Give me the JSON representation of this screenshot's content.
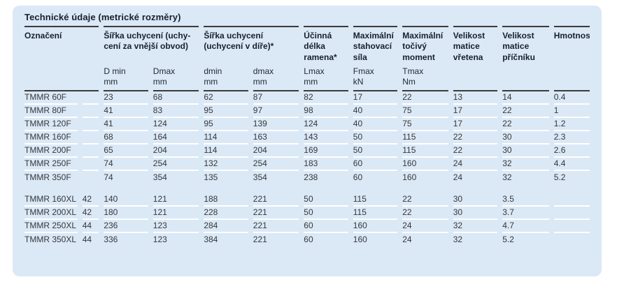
{
  "title": "Technické údaje (metrické rozměry)",
  "colors": {
    "panel_bg": "#dbe8f6",
    "heading_text": "#16212e",
    "subheader_text": "#222b34",
    "data_text": "#34383c",
    "rule_dark": "#3c3c3c",
    "rule_light": "#ffffff",
    "page_bg": "#ffffff"
  },
  "table": {
    "group_headers": [
      {
        "label": "Označení"
      },
      {
        "label": "Šířka uchycení (uchy-\ncení za vnější obvod)"
      },
      {
        "label": "Šířka uchycení\n(uchycení v díře)*"
      },
      {
        "label": "Účinná\ndélka\nramena*"
      },
      {
        "label": "Maximální\nstahovací\nsíla"
      },
      {
        "label": "Maximální\ntočivý\nmoment"
      },
      {
        "label": "Velikost\nmatice\nvřetena"
      },
      {
        "label": "Velikost\nmatice\npříčníku"
      },
      {
        "label": "Hmotnost"
      }
    ],
    "sub_headers": [
      "D min\nmm",
      "Dmax\nmm",
      "dmin\nmm",
      "dmax\nmm",
      "Lmax\nmm",
      "Fmax\nkN",
      "Tmax\nNm",
      "",
      "",
      ""
    ],
    "rows": [
      {
        "name": "TMMR 60F",
        "extra": "",
        "values": [
          "23",
          "68",
          "62",
          "87",
          "82",
          "17",
          "22",
          "13",
          "14",
          "0.4"
        ]
      },
      {
        "name": "TMMR 80F",
        "extra": "",
        "values": [
          "41",
          "83",
          "95",
          "97",
          "98",
          "40",
          "75",
          "17",
          "22",
          "1"
        ]
      },
      {
        "name": "TMMR 120F",
        "extra": "",
        "values": [
          "41",
          "124",
          "95",
          "139",
          "124",
          "40",
          "75",
          "17",
          "22",
          "1.2"
        ]
      },
      {
        "name": "TMMR 160F",
        "extra": "",
        "values": [
          "68",
          "164",
          "114",
          "163",
          "143",
          "50",
          "115",
          "22",
          "30",
          "2.3"
        ]
      },
      {
        "name": "TMMR 200F",
        "extra": "",
        "values": [
          "65",
          "204",
          "114",
          "204",
          "169",
          "50",
          "115",
          "22",
          "30",
          "2.6"
        ]
      },
      {
        "name": "TMMR 250F",
        "extra": "",
        "values": [
          "74",
          "254",
          "132",
          "254",
          "183",
          "60",
          "160",
          "24",
          "32",
          "4.4"
        ]
      },
      {
        "name": "TMMR 350F",
        "extra": "",
        "values": [
          "74",
          "354",
          "135",
          "354",
          "238",
          "60",
          "160",
          "24",
          "32",
          "5.2"
        ]
      },
      {
        "type": "gap"
      },
      {
        "name": "TMMR 160XL",
        "extra": "42",
        "values": [
          "140",
          "121",
          "188",
          "221",
          "50",
          "115",
          "22",
          "30",
          "3.5",
          ""
        ]
      },
      {
        "name": "TMMR 200XL",
        "extra": "42",
        "values": [
          "180",
          "121",
          "228",
          "221",
          "50",
          "115",
          "22",
          "30",
          "3.7",
          ""
        ]
      },
      {
        "name": "TMMR 250XL",
        "extra": "44",
        "values": [
          "236",
          "123",
          "284",
          "221",
          "60",
          "160",
          "24",
          "32",
          "4.7",
          ""
        ]
      },
      {
        "name": "TMMR 350XL",
        "extra": "44",
        "values": [
          "336",
          "123",
          "384",
          "221",
          "60",
          "160",
          "24",
          "32",
          "5.2",
          ""
        ]
      }
    ]
  }
}
